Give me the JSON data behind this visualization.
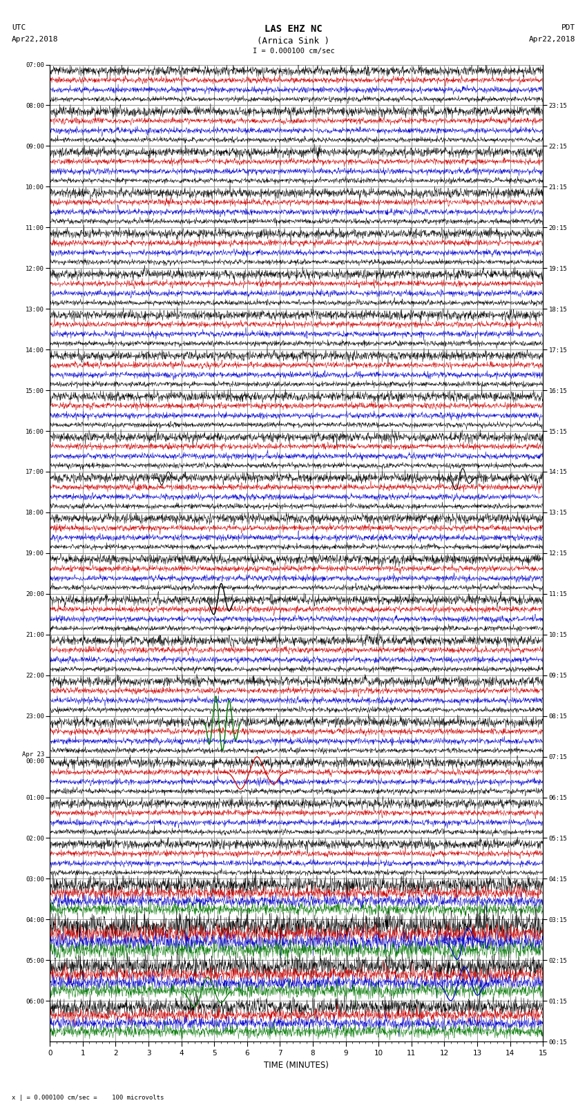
{
  "title_line1": "LAS EHZ NC",
  "title_line2": "(Arnica Sink )",
  "scale_label": "I = 0.000100 cm/sec",
  "left_tz": "UTC",
  "left_date": "Apr22,2018",
  "right_tz": "PDT",
  "right_date": "Apr22,2018",
  "bottom_label": "TIME (MINUTES)",
  "bottom_note": "x | = 0.000100 cm/sec =    100 microvolts",
  "utc_labels": [
    "07:00",
    "08:00",
    "09:00",
    "10:00",
    "11:00",
    "12:00",
    "13:00",
    "14:00",
    "15:00",
    "16:00",
    "17:00",
    "18:00",
    "19:00",
    "20:00",
    "21:00",
    "22:00",
    "23:00",
    "Apr 23\n00:00",
    "01:00",
    "02:00",
    "03:00",
    "04:00",
    "05:00",
    "06:00"
  ],
  "pdt_labels": [
    "00:15",
    "01:15",
    "02:15",
    "03:15",
    "04:15",
    "05:15",
    "06:15",
    "07:15",
    "08:15",
    "09:15",
    "10:15",
    "11:15",
    "12:15",
    "13:15",
    "14:15",
    "15:15",
    "16:15",
    "17:15",
    "18:15",
    "19:15",
    "20:15",
    "21:15",
    "22:15",
    "23:15"
  ],
  "n_rows": 24,
  "bg_color": "#ffffff",
  "trace_black": "#000000",
  "trace_red": "#cc0000",
  "trace_blue": "#0000cc",
  "trace_green": "#007700",
  "grid_color": "#999999",
  "tick_color": "#000000"
}
